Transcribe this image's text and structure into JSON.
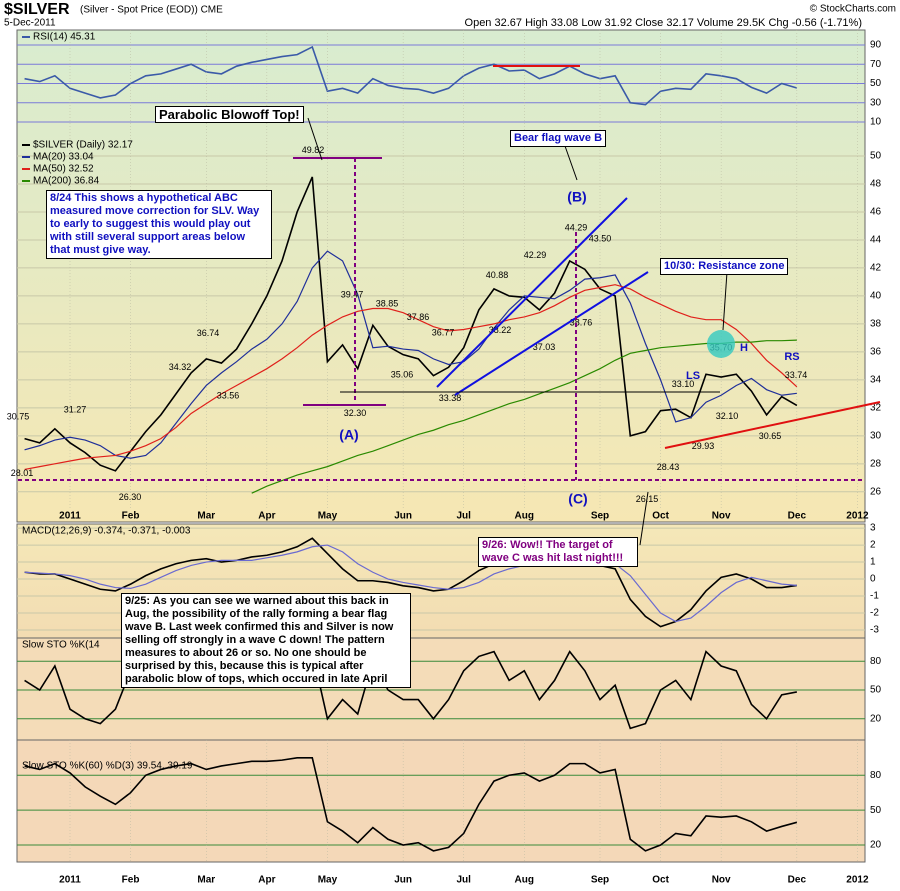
{
  "header": {
    "title": "$SILVER",
    "subtitle": "(Silver - Spot Price (EOD)) CME",
    "date": "5-Dec-2011",
    "quote": "Open 32.67 High 33.08 Low 31.92 Close 32.17 Volume 29.5K Chg -0.56 (-1.71%)",
    "credit": "© StockCharts.com"
  },
  "annotations": {
    "blowoff": "Parabolic Blowoff Top!",
    "abc_note": "8/24 This shows a hypothetical ABC measured move correction for SLV. Way to early to suggest this would play out with still several support areas below that must give way.",
    "bear_flag": "Bear flag wave B",
    "wave_b": "(B)",
    "wave_a": "(A)",
    "wave_c": "(C)",
    "resistance": "10/30: Resistance zone",
    "ls": "LS",
    "h": "H",
    "rs": "RS",
    "target_hit": "9/26: Wow!! The target of wave C was hit last night!!!",
    "warning": "9/25: As you can see we warned about this back in Aug, the possibility of the rally forming a bear flag wave B. Last week confirmed this and Silver is now selling off strongly in a wave C down!  The pattern measures to about 26 or so.  No one should be surprised by this, because this is typical after parabolic blow of tops, which occured in late April"
  },
  "chart_data": [
    {
      "type": "line",
      "ylim": [
        0,
        100
      ],
      "yticks": [
        10,
        30,
        50,
        70,
        90
      ],
      "grid": true,
      "series": [
        {
          "name": "RSI(14) 45.31",
          "color": "#3a5aa8",
          "values": [
            55,
            52,
            58,
            45,
            40,
            35,
            38,
            50,
            58,
            60,
            65,
            70,
            62,
            60,
            68,
            72,
            75,
            78,
            80,
            88,
            42,
            45,
            40,
            55,
            48,
            45,
            44,
            40,
            45,
            58,
            66,
            70,
            63,
            64,
            55,
            60,
            68,
            60,
            55,
            58,
            30,
            28,
            42,
            45,
            44,
            60,
            58,
            55,
            46,
            40,
            50,
            45.31
          ]
        }
      ]
    },
    {
      "type": "line",
      "ylim": [
        24.7,
        51.5
      ],
      "yticks": [
        26,
        28,
        30,
        32,
        34,
        36,
        38,
        40,
        42,
        44,
        46,
        48,
        50
      ],
      "grid": true,
      "categories": [
        null,
        null,
        null,
        "2011",
        null,
        null,
        null,
        "Feb",
        null,
        null,
        null,
        null,
        "Mar",
        null,
        null,
        null,
        "Apr",
        null,
        null,
        null,
        "May",
        null,
        null,
        null,
        null,
        "Jun",
        null,
        null,
        null,
        "Jul",
        null,
        null,
        null,
        "Aug",
        null,
        null,
        null,
        null,
        "Sep",
        null,
        null,
        null,
        "Oct",
        null,
        null,
        null,
        "Nov",
        null,
        null,
        null,
        null,
        "Dec",
        null,
        null,
        null,
        "2012"
      ],
      "series": [
        {
          "name": "$SILVER (Daily) 32.17",
          "color": "#000000",
          "values": [
            29.8,
            29.5,
            30.5,
            29.5,
            28.8,
            27.9,
            27.5,
            28.9,
            30.3,
            31.5,
            33.0,
            34.5,
            35.5,
            35.2,
            36.2,
            38.0,
            40.0,
            42.5,
            46.0,
            48.5,
            35.3,
            36.5,
            34.8,
            37.9,
            36.4,
            35.8,
            35.5,
            34.3,
            34.9,
            36.3,
            39.0,
            40.5,
            40.0,
            39.9,
            39.0,
            40.2,
            42.5,
            41.9,
            40.5,
            40.0,
            30.0,
            30.3,
            31.8,
            31.9,
            31.3,
            34.4,
            34.2,
            34.4,
            33.2,
            31.5,
            32.8,
            32.17,
            null,
            null,
            null,
            null
          ]
        },
        {
          "name": "MA(20) 33.04",
          "color": "#1f2f9a",
          "values": [
            29.0,
            29.3,
            29.7,
            29.9,
            29.7,
            29.3,
            28.6,
            28.4,
            28.6,
            29.5,
            30.9,
            32.3,
            33.6,
            34.5,
            35.3,
            36.2,
            36.9,
            38.0,
            39.6,
            42.0,
            43.2,
            42.5,
            40.1,
            36.3,
            36.4,
            36.2,
            36.1,
            35.5,
            35.1,
            35.3,
            36.2,
            37.7,
            39.0,
            40.0,
            39.9,
            39.8,
            40.4,
            41.2,
            41.3,
            41.5,
            39.5,
            36.6,
            34.0,
            31.0,
            31.3,
            32.4,
            32.9,
            33.6,
            34.1,
            33.3,
            32.9,
            33.04,
            null,
            null,
            null,
            null
          ]
        },
        {
          "name": "MA(50) 32.52",
          "color": "#e0201b",
          "values": [
            27.6,
            27.8,
            28.0,
            28.2,
            28.4,
            28.5,
            28.6,
            28.9,
            29.3,
            29.8,
            30.6,
            31.6,
            32.3,
            33.0,
            33.6,
            34.2,
            34.8,
            35.5,
            36.3,
            37.2,
            37.9,
            38.5,
            38.9,
            39.1,
            39.1,
            38.8,
            38.3,
            37.8,
            37.5,
            37.6,
            37.8,
            38.0,
            38.3,
            38.5,
            38.8,
            39.3,
            39.9,
            40.4,
            40.6,
            40.8,
            40.5,
            39.9,
            39.4,
            38.9,
            38.5,
            38.3,
            38.3,
            37.6,
            36.6,
            35.4,
            34.5,
            33.5,
            null,
            null,
            null,
            null
          ]
        },
        {
          "name": "MA(200) 36.84",
          "color": "#2a8a00",
          "values": [
            null,
            null,
            null,
            null,
            null,
            null,
            null,
            null,
            null,
            null,
            null,
            null,
            null,
            null,
            null,
            25.9,
            26.4,
            26.8,
            27.2,
            27.5,
            27.8,
            28.2,
            28.6,
            28.9,
            29.3,
            29.7,
            30.1,
            30.4,
            30.8,
            31.1,
            31.5,
            31.9,
            32.3,
            32.6,
            33.0,
            33.4,
            33.8,
            34.3,
            34.8,
            35.4,
            35.9,
            36.1,
            36.3,
            36.4,
            36.5,
            36.6,
            36.6,
            36.7,
            36.7,
            36.8,
            36.8,
            36.84,
            null,
            null,
            null,
            null
          ]
        }
      ],
      "point_labels": {
        "values": [
          30.75,
          31.27,
          28.01,
          26.3,
          34.32,
          36.74,
          33.56,
          49.82,
          39.47,
          38.85,
          37.86,
          36.77,
          35.06,
          32.3,
          33.38,
          40.88,
          38.22,
          42.29,
          37.03,
          44.29,
          43.5,
          38.76,
          26.15,
          28.43,
          33.1,
          35.7,
          32.1,
          29.93,
          30.65,
          33.74
        ],
        "value_labels": [
          "30.75",
          "31.27",
          "28.01",
          "26.30",
          "34.32",
          "36.74",
          "33.56",
          "49.82",
          "39.47",
          "38.85",
          "37.86",
          "36.77",
          "35.06",
          "32.30",
          "33.38",
          "40.88",
          "38.22",
          "42.29",
          "37.03",
          "44.29",
          "43.50",
          "38.76",
          "26.15",
          "28.43",
          "33.10",
          "35.70",
          "32.10",
          "29.93",
          "30.65",
          "33.74"
        ]
      }
    },
    {
      "type": "line",
      "title": "MACD(12,26,9) -0.374, -0.371, -0.003",
      "ylim": [
        -3.47,
        3.24
      ],
      "yticks": [
        -3,
        -2,
        -1,
        0,
        1,
        2,
        3
      ],
      "grid": true,
      "series": [
        {
          "color": "#000000",
          "values": [
            0.4,
            0.3,
            0.3,
            0.0,
            -0.3,
            -0.6,
            -0.7,
            -0.3,
            0.2,
            0.6,
            0.9,
            1.1,
            1.2,
            1.0,
            1.1,
            1.3,
            1.4,
            1.6,
            1.9,
            2.4,
            1.5,
            0.6,
            -0.1,
            -0.1,
            -0.2,
            -0.4,
            -0.5,
            -0.7,
            -0.6,
            -0.1,
            0.5,
            0.9,
            0.9,
            1.0,
            0.9,
            1.0,
            1.3,
            1.2,
            0.8,
            0.6,
            -1.2,
            -2.2,
            -2.8,
            -2.5,
            -1.8,
            -0.7,
            0.1,
            0.3,
            0.0,
            -0.5,
            -0.5,
            -0.374
          ]
        },
        {
          "color": "#6a6ad0",
          "values": [
            0.4,
            0.35,
            0.3,
            0.2,
            0.0,
            -0.3,
            -0.5,
            -0.55,
            -0.3,
            0.1,
            0.5,
            0.8,
            1.0,
            1.1,
            1.1,
            1.1,
            1.25,
            1.4,
            1.6,
            1.9,
            2.0,
            1.6,
            0.9,
            0.4,
            0.0,
            -0.2,
            -0.35,
            -0.5,
            -0.6,
            -0.5,
            -0.2,
            0.3,
            0.6,
            0.8,
            0.9,
            0.9,
            1.0,
            1.1,
            1.1,
            0.9,
            0.2,
            -0.9,
            -2.0,
            -2.5,
            -2.3,
            -1.6,
            -0.8,
            -0.2,
            0.1,
            -0.1,
            -0.3,
            -0.371
          ]
        }
      ]
    },
    {
      "type": "line",
      "title": "Slow STO %K(14",
      "ylim": [
        0,
        100
      ],
      "yticks": [
        20,
        50,
        80
      ],
      "grid": true,
      "series": [
        {
          "color": "#000000",
          "values": [
            60,
            50,
            75,
            30,
            20,
            15,
            30,
            70,
            85,
            80,
            75,
            85,
            60,
            55,
            80,
            85,
            90,
            88,
            92,
            90,
            20,
            40,
            25,
            80,
            50,
            40,
            40,
            20,
            40,
            70,
            85,
            90,
            60,
            70,
            40,
            60,
            90,
            70,
            40,
            55,
            10,
            15,
            50,
            60,
            40,
            90,
            75,
            70,
            35,
            20,
            45,
            48
          ]
        }
      ]
    },
    {
      "type": "line",
      "title": "Slow STO %K(60) %D(3) 39.54, 39.19",
      "ylim": [
        5,
        100
      ],
      "yticks": [
        20,
        50,
        80
      ],
      "grid": true,
      "categories": [
        null,
        null,
        null,
        "2011",
        null,
        null,
        null,
        "Feb",
        null,
        null,
        null,
        null,
        "Mar",
        null,
        null,
        null,
        "Apr",
        null,
        null,
        null,
        "May",
        null,
        null,
        null,
        null,
        "Jun",
        null,
        null,
        null,
        "Jul",
        null,
        null,
        null,
        "Aug",
        null,
        null,
        null,
        null,
        "Sep",
        null,
        null,
        null,
        "Oct",
        null,
        null,
        null,
        "Nov",
        null,
        null,
        null,
        null,
        "Dec",
        null,
        null,
        null,
        "2012"
      ],
      "series": [
        {
          "color": "#000000",
          "values": [
            88,
            85,
            90,
            82,
            70,
            62,
            55,
            65,
            80,
            85,
            88,
            90,
            85,
            88,
            90,
            92,
            92,
            93,
            95,
            95,
            40,
            32,
            22,
            35,
            25,
            20,
            22,
            15,
            18,
            30,
            55,
            75,
            80,
            82,
            75,
            80,
            90,
            90,
            82,
            85,
            25,
            15,
            20,
            30,
            28,
            45,
            44,
            45,
            40,
            32,
            36,
            39.54,
            null,
            null,
            null,
            null
          ]
        }
      ]
    }
  ]
}
